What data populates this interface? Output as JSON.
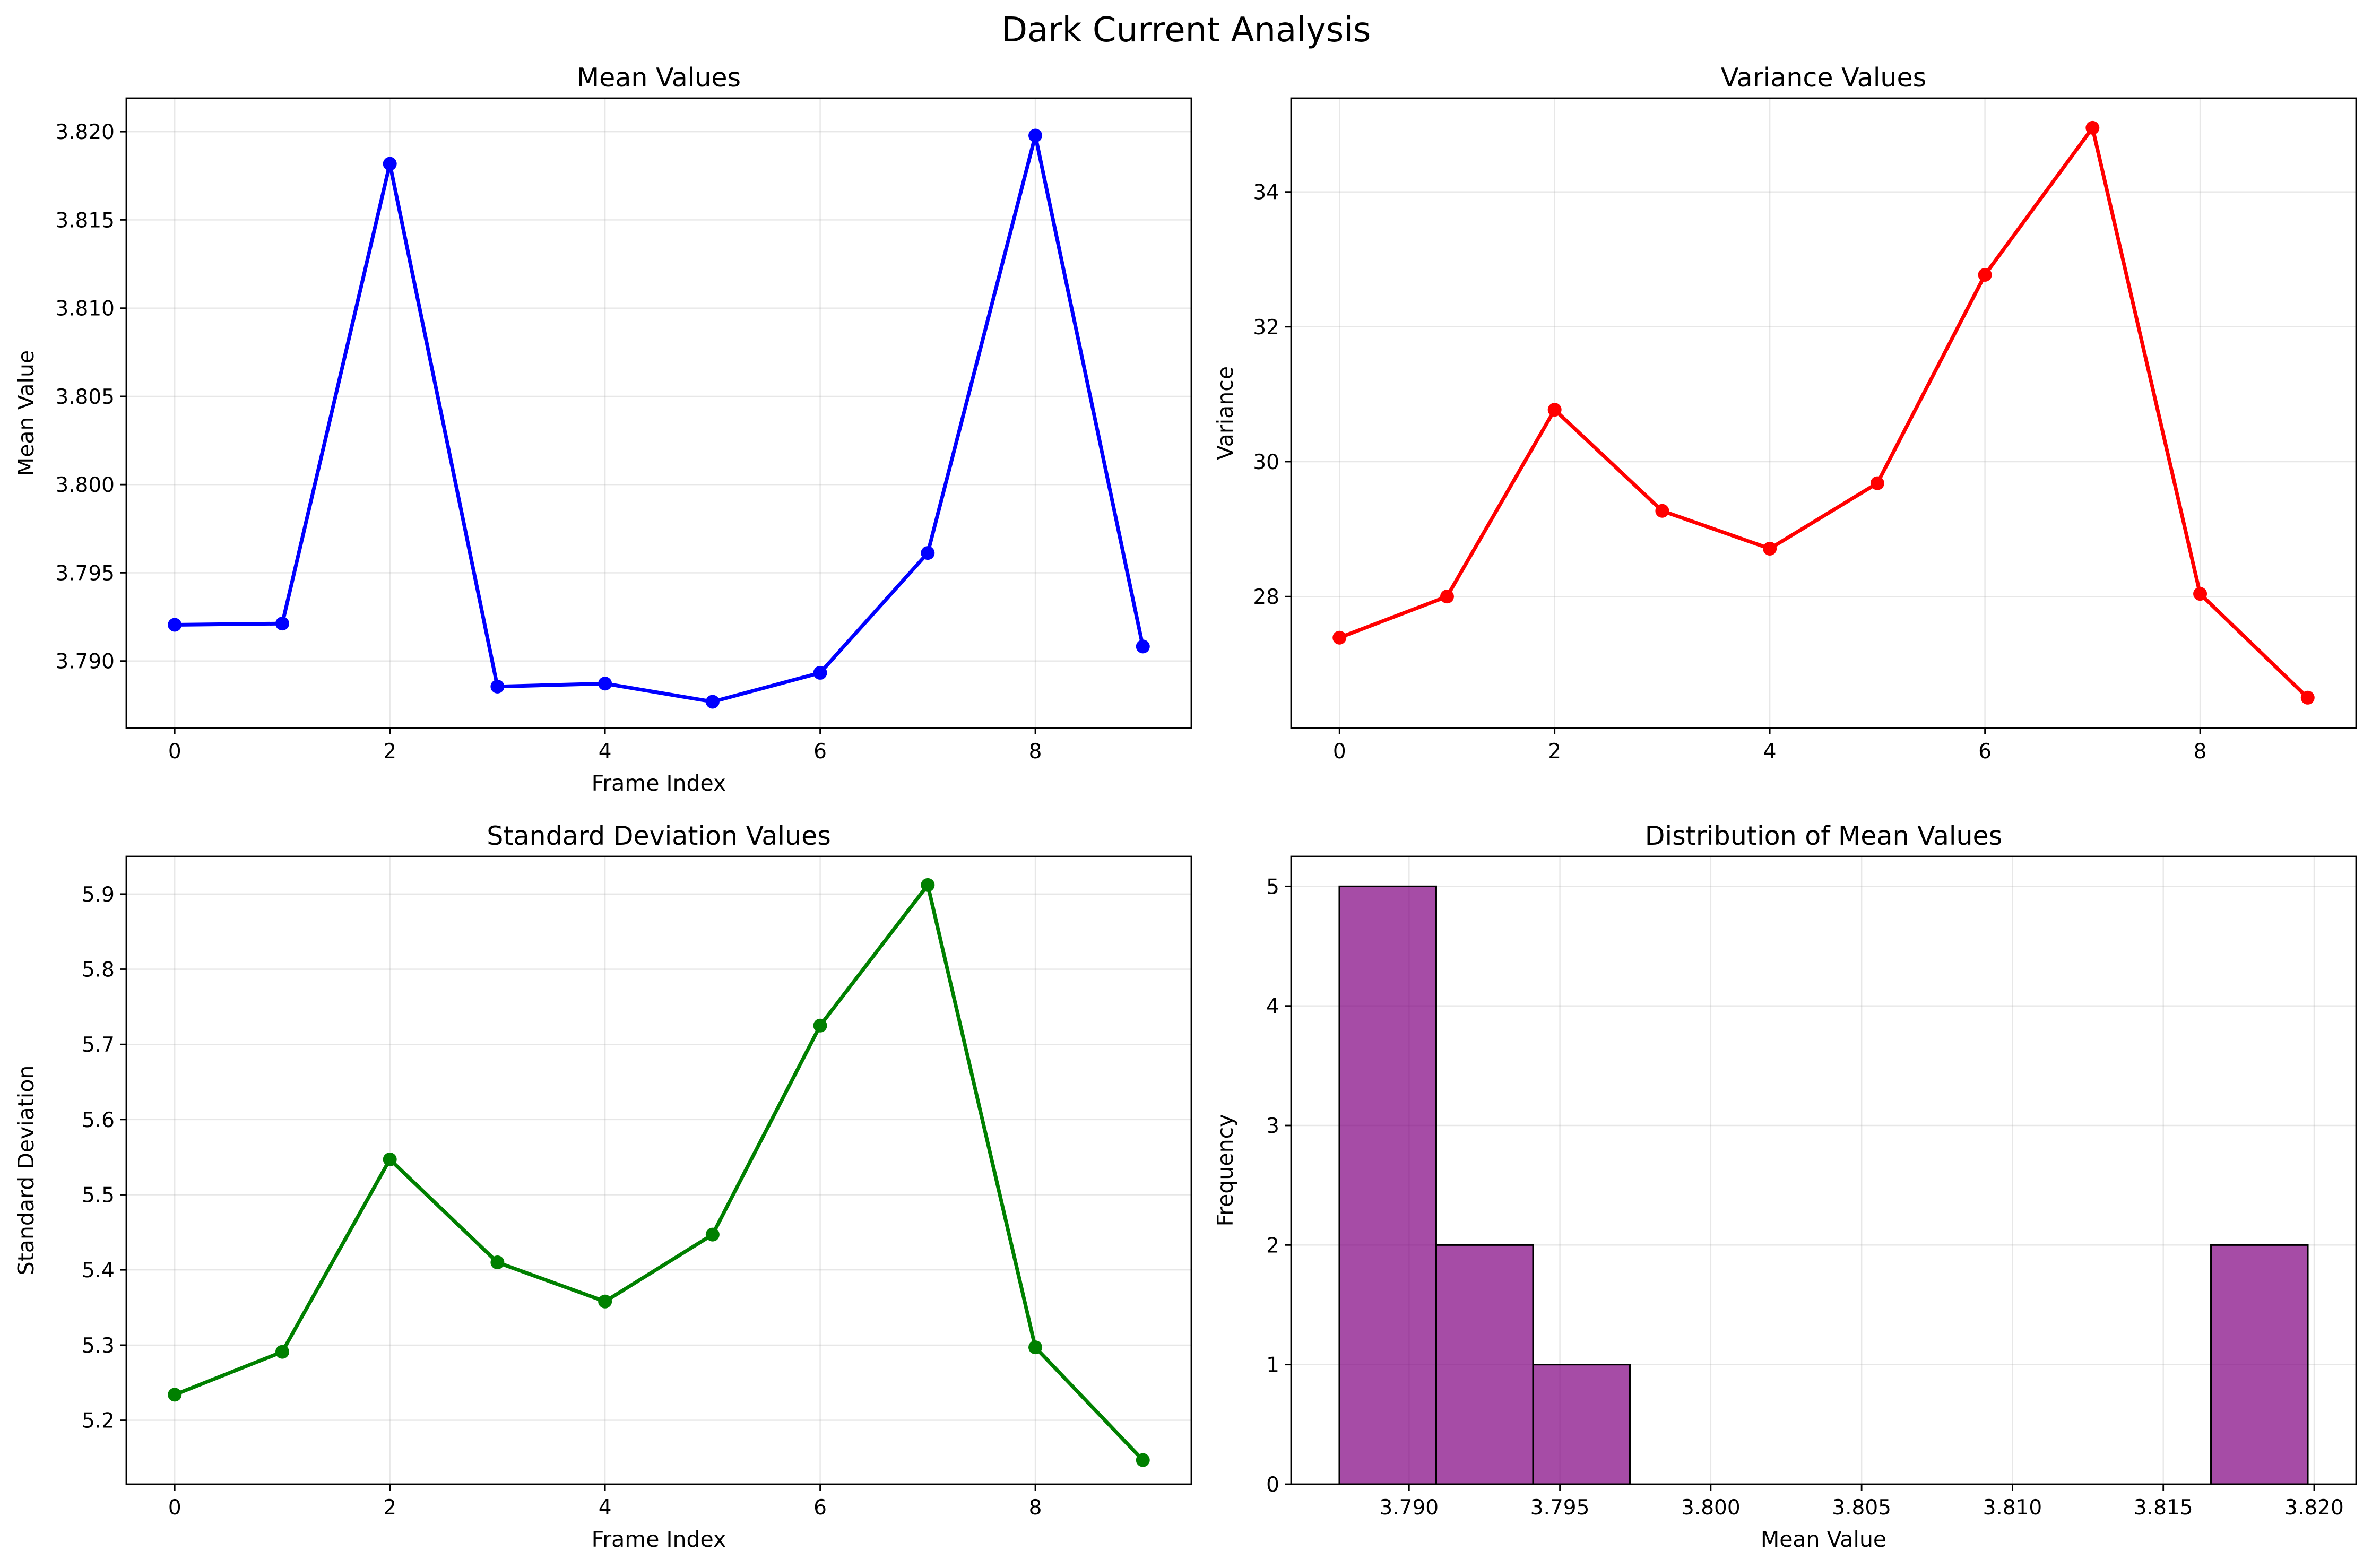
{
  "figure": {
    "title": "Dark Current Analysis"
  },
  "chart_data": [
    {
      "type": "line",
      "title": "Mean Values",
      "xlabel": "Frame Index",
      "ylabel": "Mean Value",
      "x": [
        0,
        1,
        2,
        3,
        4,
        5,
        6,
        7,
        8,
        9
      ],
      "series": [
        {
          "values": [
            3.79205,
            3.79212,
            3.81818,
            3.78855,
            3.78872,
            3.78769,
            3.78933,
            3.79612,
            3.81978,
            3.79082
          ],
          "color": "#0000ff",
          "marker": "circle"
        }
      ],
      "xlim": [
        -0.45,
        9.45
      ],
      "ylim": [
        3.7862,
        3.8219
      ],
      "xticks": [
        0,
        2,
        4,
        6,
        8
      ],
      "yticks": [
        3.79,
        3.795,
        3.8,
        3.805,
        3.81,
        3.815,
        3.82
      ],
      "xtick_labels": [
        "0",
        "2",
        "4",
        "6",
        "8"
      ],
      "ytick_labels": [
        "3.790",
        "3.795",
        "3.800",
        "3.805",
        "3.810",
        "3.815",
        "3.820"
      ],
      "grid": true
    },
    {
      "type": "line",
      "title": "Variance Values",
      "xlabel": "",
      "ylabel": "Variance",
      "x": [
        0,
        1,
        2,
        3,
        4,
        5,
        6,
        7,
        8,
        9
      ],
      "series": [
        {
          "values": [
            27.39,
            28.0,
            30.77,
            29.27,
            28.71,
            29.68,
            32.77,
            34.95,
            28.04,
            26.5
          ],
          "color": "#ff0000",
          "marker": "circle"
        }
      ],
      "xlim": [
        -0.45,
        9.45
      ],
      "ylim": [
        26.05,
        35.39
      ],
      "xticks": [
        0,
        2,
        4,
        6,
        8
      ],
      "yticks": [
        28,
        30,
        32,
        34
      ],
      "xtick_labels": [
        "0",
        "2",
        "4",
        "6",
        "8"
      ],
      "ytick_labels": [
        "28",
        "30",
        "32",
        "34"
      ],
      "grid": true
    },
    {
      "type": "line",
      "title": "Standard Deviation Values",
      "xlabel": "Frame Index",
      "ylabel": "Standard Deviation",
      "x": [
        0,
        1,
        2,
        3,
        4,
        5,
        6,
        7,
        8,
        9
      ],
      "series": [
        {
          "values": [
            5.234,
            5.291,
            5.547,
            5.41,
            5.358,
            5.447,
            5.725,
            5.912,
            5.297,
            5.147
          ],
          "color": "#008000",
          "marker": "circle"
        }
      ],
      "xlim": [
        -0.45,
        9.45
      ],
      "ylim": [
        5.115,
        5.95
      ],
      "xticks": [
        0,
        2,
        4,
        6,
        8
      ],
      "yticks": [
        5.2,
        5.3,
        5.4,
        5.5,
        5.6,
        5.7,
        5.8,
        5.9
      ],
      "xtick_labels": [
        "0",
        "2",
        "4",
        "6",
        "8"
      ],
      "ytick_labels": [
        "5.2",
        "5.3",
        "5.4",
        "5.5",
        "5.6",
        "5.7",
        "5.8",
        "5.9"
      ],
      "grid": true
    },
    {
      "type": "bar",
      "subtype": "histogram",
      "title": "Distribution of Mean Values",
      "xlabel": "Mean Value",
      "ylabel": "Frequency",
      "bin_edges": [
        3.78769,
        3.7909,
        3.79411,
        3.79732,
        3.80053,
        3.80374,
        3.80695,
        3.81016,
        3.81337,
        3.81658,
        3.81979
      ],
      "counts": [
        5,
        2,
        1,
        0,
        0,
        0,
        0,
        0,
        0,
        2
      ],
      "color": "#800080",
      "edgecolor": "#000000",
      "xlim": [
        3.78609,
        3.82139
      ],
      "ylim": [
        0,
        5.25
      ],
      "xticks": [
        3.79,
        3.795,
        3.8,
        3.805,
        3.81,
        3.815,
        3.82
      ],
      "yticks": [
        0,
        1,
        2,
        3,
        4,
        5
      ],
      "xtick_labels": [
        "3.790",
        "3.795",
        "3.800",
        "3.805",
        "3.810",
        "3.815",
        "3.820"
      ],
      "ytick_labels": [
        "0",
        "1",
        "2",
        "3",
        "4",
        "5"
      ],
      "grid": true
    }
  ]
}
